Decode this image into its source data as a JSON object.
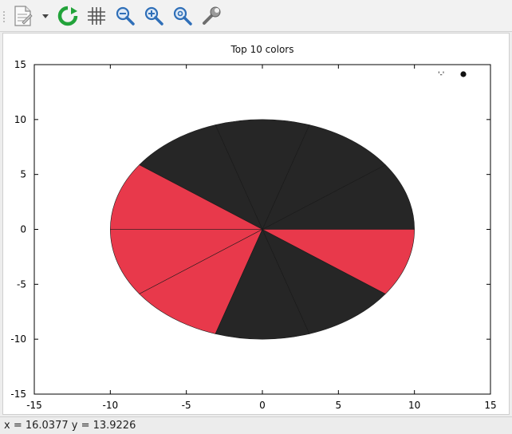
{
  "toolbar": {
    "icons": [
      "export-icon",
      "dropdown-arrow-icon",
      "replot-icon",
      "grid-icon",
      "zoom-previous-icon",
      "zoom-next-icon",
      "autoscale-icon",
      "settings-icon"
    ]
  },
  "status": {
    "text": "x = 16.0377 y = 13.9226"
  },
  "colors": {
    "dark": "#262626",
    "red": "#e8394b",
    "reload": "#22a33a",
    "magnifier": "#2f6fb8"
  },
  "chart_data": {
    "type": "pie",
    "title": "Top 10 colors",
    "xlim": [
      -15,
      15
    ],
    "ylim": [
      -15,
      15
    ],
    "xticks": [
      -15,
      -10,
      -5,
      0,
      5,
      10,
      15
    ],
    "yticks": [
      -15,
      -10,
      -5,
      0,
      5,
      10,
      15
    ],
    "x_tick_labels": [
      "-15",
      "-10",
      "-5",
      "0",
      "5",
      "10",
      "15"
    ],
    "y_tick_labels": [
      "-15",
      "-10",
      "-5",
      "0",
      "5",
      "10",
      "15"
    ],
    "radius": 10,
    "center": [
      0,
      0
    ],
    "grid": false,
    "legend": {
      "label": "'-'",
      "position": "top-right"
    },
    "slices": [
      {
        "start_deg": 0,
        "end_deg": 36,
        "color": "#262626"
      },
      {
        "start_deg": 36,
        "end_deg": 72,
        "color": "#262626"
      },
      {
        "start_deg": 72,
        "end_deg": 108,
        "color": "#262626"
      },
      {
        "start_deg": 108,
        "end_deg": 144,
        "color": "#262626"
      },
      {
        "start_deg": 144,
        "end_deg": 180,
        "color": "#e8394b"
      },
      {
        "start_deg": 180,
        "end_deg": 216,
        "color": "#e8394b"
      },
      {
        "start_deg": 216,
        "end_deg": 252,
        "color": "#e8394b"
      },
      {
        "start_deg": 252,
        "end_deg": 288,
        "color": "#262626"
      },
      {
        "start_deg": 288,
        "end_deg": 324,
        "color": "#262626"
      },
      {
        "start_deg": 324,
        "end_deg": 360,
        "color": "#e8394b"
      }
    ]
  }
}
